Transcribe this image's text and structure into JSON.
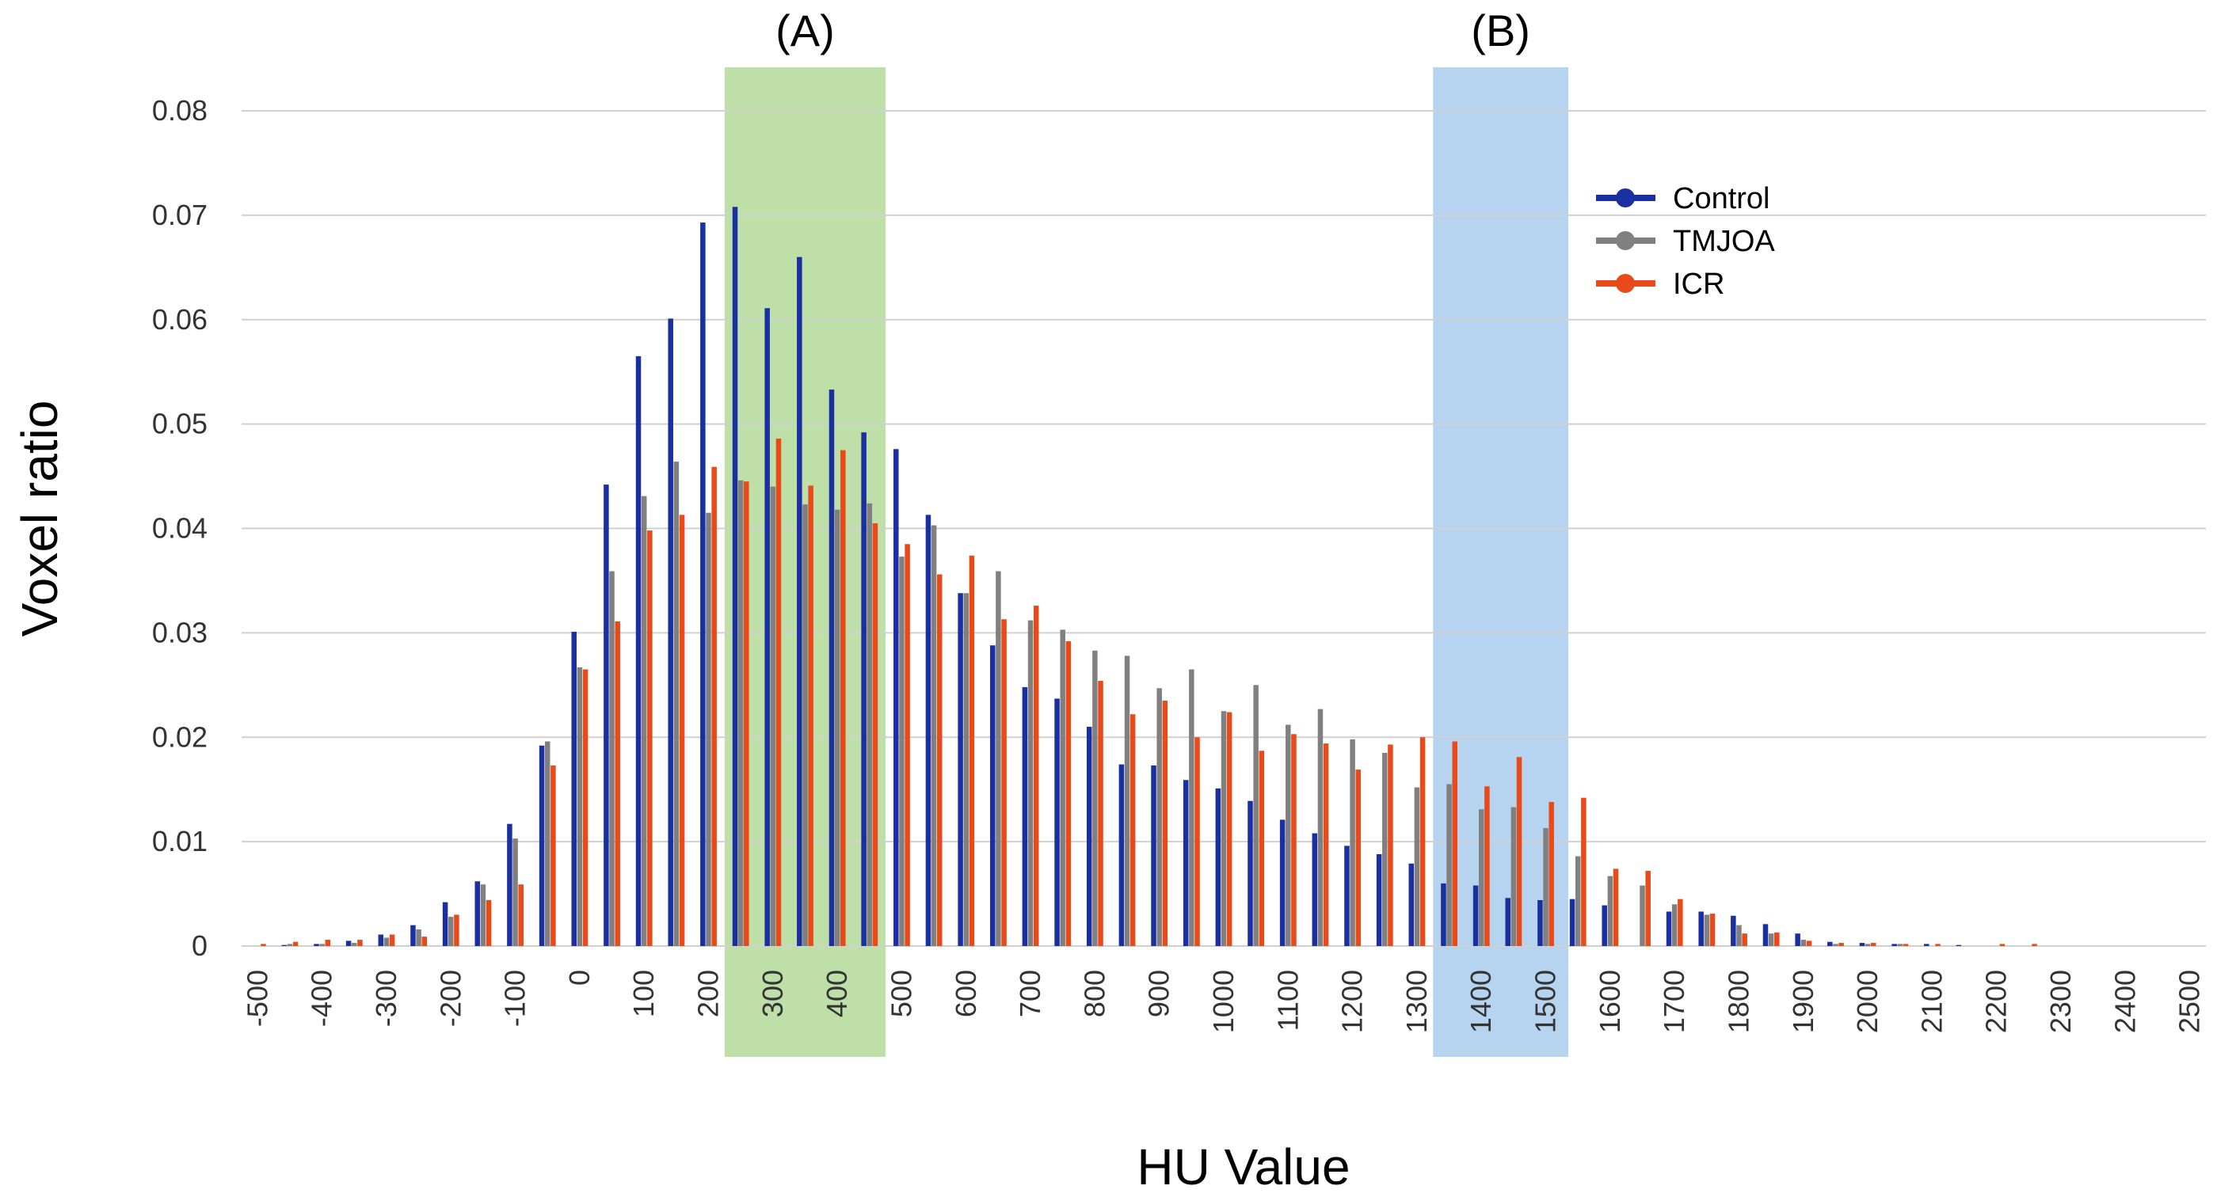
{
  "chart_data": {
    "type": "bar",
    "xlabel": "HU Value",
    "ylabel": "Voxel ratio",
    "ylim": [
      0,
      0.08
    ],
    "yticks": [
      "0",
      "0.01",
      "0.02",
      "0.03",
      "0.04",
      "0.05",
      "0.06",
      "0.07",
      "0.08"
    ],
    "xticks": [
      "-500",
      "-400",
      "-300",
      "-200",
      "-100",
      "0",
      "100",
      "200",
      "300",
      "400",
      "500",
      "600",
      "700",
      "800",
      "900",
      "1000",
      "1100",
      "1200",
      "1300",
      "1400",
      "1500",
      "1600",
      "1700",
      "1800",
      "1900",
      "2000",
      "2100",
      "2200",
      "2300",
      "2400",
      "2500"
    ],
    "grid": true,
    "legend_position": "top-right",
    "categories": [
      -500,
      -450,
      -400,
      -350,
      -300,
      -250,
      -200,
      -150,
      -100,
      -50,
      0,
      50,
      100,
      150,
      200,
      250,
      300,
      350,
      400,
      450,
      500,
      550,
      600,
      650,
      700,
      750,
      800,
      850,
      900,
      950,
      1000,
      1050,
      1100,
      1150,
      1200,
      1250,
      1300,
      1350,
      1400,
      1450,
      1500,
      1550,
      1600,
      1650,
      1700,
      1750,
      1800,
      1850,
      1900,
      1950,
      2000,
      2050,
      2100,
      2150,
      2200,
      2250,
      2300,
      2350,
      2400,
      2450,
      2500
    ],
    "series": [
      {
        "name": "Control",
        "color": "#1a2fa0",
        "values": [
          0,
          0.0001,
          0.0002,
          0.0005,
          0.0011,
          0.002,
          0.0042,
          0.0062,
          0.0117,
          0.0192,
          0.0301,
          0.0442,
          0.0565,
          0.0601,
          0.0693,
          0.0708,
          0.0611,
          0.066,
          0.0533,
          0.0492,
          0.0476,
          0.0413,
          0.0338,
          0.0288,
          0.0248,
          0.0237,
          0.021,
          0.0174,
          0.0173,
          0.0159,
          0.0151,
          0.0139,
          0.0121,
          0.0108,
          0.0096,
          0.0088,
          0.0079,
          0.006,
          0.0058,
          0.0046,
          0.0044,
          0.0045,
          0.0039,
          0,
          0.0033,
          0.0033,
          0.0029,
          0.0021,
          0.0012,
          0.0004,
          0.0003,
          0.0002,
          0.0002,
          0.0001,
          0,
          0,
          0,
          0,
          0,
          0,
          0
        ]
      },
      {
        "name": "TMJOA",
        "color": "#808080",
        "values": [
          0,
          0.0002,
          0.0002,
          0.0003,
          0.0008,
          0.0016,
          0.0028,
          0.0059,
          0.0103,
          0.0196,
          0.0267,
          0.0359,
          0.0431,
          0.0464,
          0.0415,
          0.0446,
          0.044,
          0.0423,
          0.0418,
          0.0424,
          0.0373,
          0.0403,
          0.0338,
          0.0359,
          0.0312,
          0.0303,
          0.0283,
          0.0278,
          0.0247,
          0.0265,
          0.0225,
          0.025,
          0.0212,
          0.0227,
          0.0198,
          0.0185,
          0.0152,
          0.0155,
          0.0131,
          0.0133,
          0.0113,
          0.0086,
          0.0067,
          0.0058,
          0.004,
          0.003,
          0.002,
          0.0012,
          0.0006,
          0.0002,
          0.0002,
          0.0002,
          0,
          0,
          0,
          0,
          0,
          0,
          0,
          0,
          0
        ]
      },
      {
        "name": "ICR",
        "color": "#e84a1a",
        "values": [
          0.0002,
          0.0004,
          0.0006,
          0.0006,
          0.0011,
          0.0009,
          0.003,
          0.0044,
          0.0059,
          0.0173,
          0.0265,
          0.0311,
          0.0398,
          0.0413,
          0.0459,
          0.0445,
          0.0486,
          0.0441,
          0.0475,
          0.0405,
          0.0385,
          0.0356,
          0.0374,
          0.0313,
          0.0326,
          0.0292,
          0.0254,
          0.0222,
          0.0235,
          0.02,
          0.0224,
          0.0187,
          0.0203,
          0.0194,
          0.0169,
          0.0193,
          0.02,
          0.0196,
          0.0153,
          0.0181,
          0.0138,
          0.0142,
          0.0074,
          0.0072,
          0.0045,
          0.0031,
          0.0012,
          0.0013,
          0.0005,
          0.0003,
          0.0003,
          0.0002,
          0.0002,
          0,
          0.0002,
          0.0002,
          0,
          0,
          0,
          0,
          0
        ]
      }
    ],
    "regions": [
      {
        "label": "(A)",
        "from": 225,
        "to": 475,
        "color": "#a8d48a"
      },
      {
        "label": "(B)",
        "from": 1325,
        "to": 1535,
        "color": "#9dc6ea"
      }
    ]
  }
}
